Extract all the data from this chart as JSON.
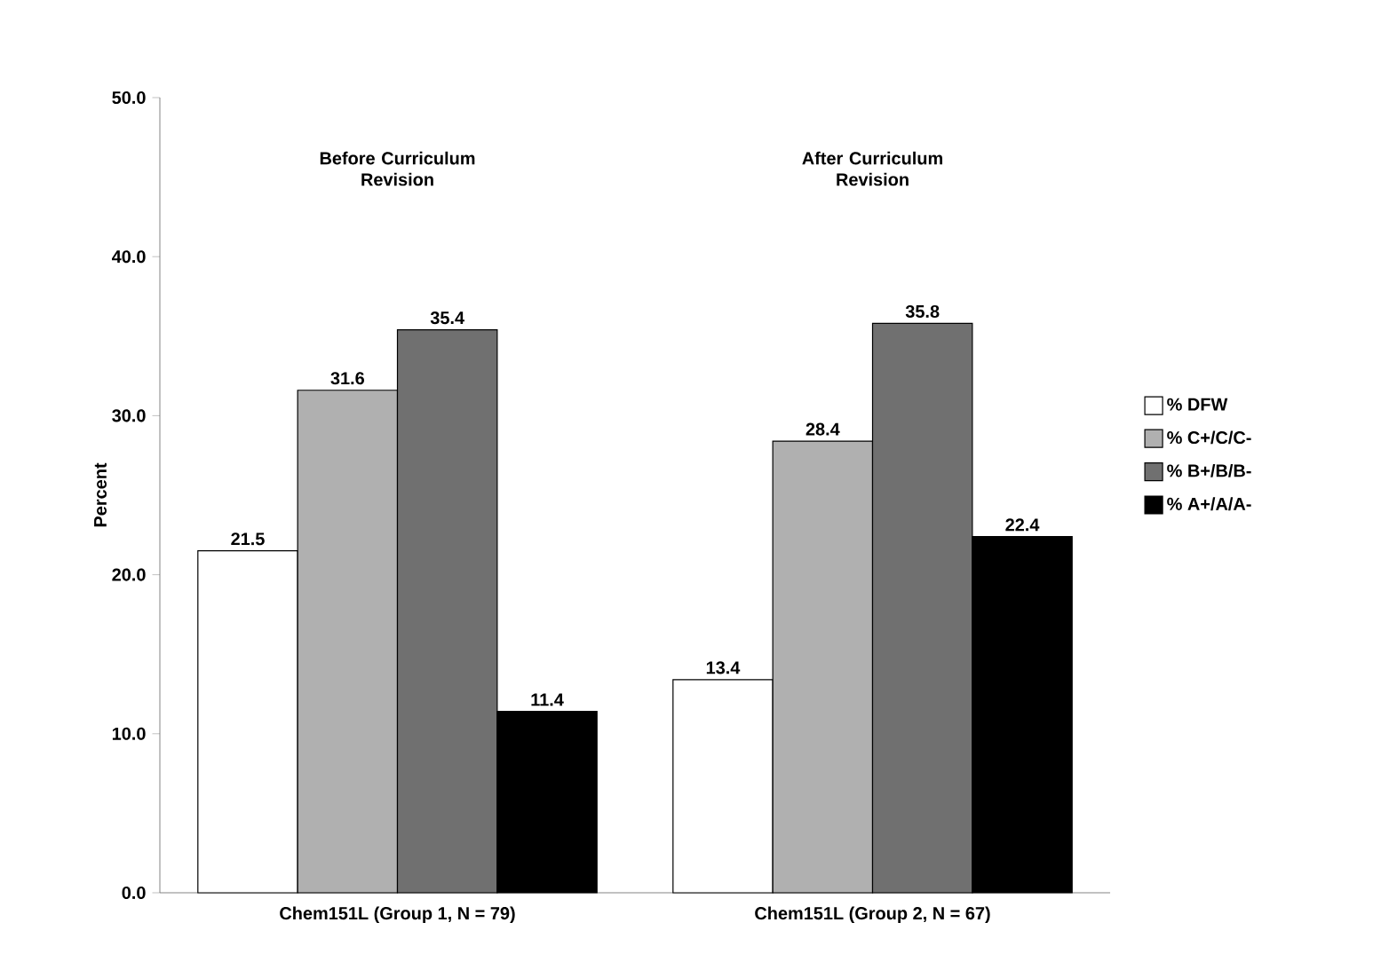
{
  "chart_data": {
    "type": "bar",
    "ylabel": "Percent",
    "categories": [
      "Chem151L (Group 1, N = 79)",
      "Chem151L (Group 2, N = 67)"
    ],
    "series": [
      {
        "name": "% DFW",
        "color": "#ffffff",
        "values": [
          21.5,
          13.4
        ]
      },
      {
        "name": "% C+/C/C-",
        "color": "#b0b0b0",
        "values": [
          31.6,
          28.4
        ]
      },
      {
        "name": "% B+/B/B-",
        "color": "#707070",
        "values": [
          35.4,
          35.8
        ]
      },
      {
        "name": "% A+/A/A-",
        "color": "#000000",
        "values": [
          11.4,
          22.4
        ]
      }
    ],
    "ylim": [
      0,
      50
    ],
    "yticks": [
      {
        "value": 0,
        "label": "0.0"
      },
      {
        "value": 10,
        "label": "10.0"
      },
      {
        "value": 20,
        "label": "20.0"
      },
      {
        "value": 30,
        "label": "30.0"
      },
      {
        "value": 40,
        "label": "40.0"
      },
      {
        "value": 50,
        "label": "50.0"
      }
    ],
    "annotations": [
      "Before Curriculum Revision",
      "After Curriculum Revision"
    ],
    "data_labels": true,
    "legend": "right",
    "grid": false
  }
}
